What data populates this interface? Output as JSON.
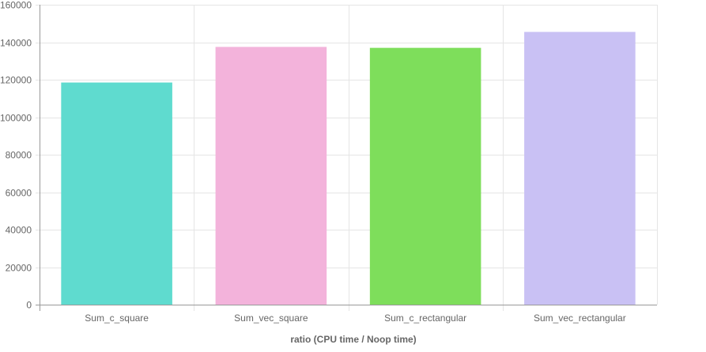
{
  "chart_data": {
    "type": "bar",
    "title": "",
    "xlabel": "ratio (CPU time / Noop time)",
    "ylabel": "",
    "categories": [
      "Sum_c_square",
      "Sum_vec_square",
      "Sum_c_rectangular",
      "Sum_vec_rectangular"
    ],
    "values": [
      118500,
      137500,
      137000,
      145500
    ],
    "colors": [
      "#5fdbcf",
      "#f3b3db",
      "#7ede5b",
      "#c9c1f4"
    ],
    "ylim": [
      0,
      160000
    ],
    "yticks": [
      0,
      20000,
      40000,
      60000,
      80000,
      100000,
      120000,
      140000,
      160000
    ],
    "ytick_labels": [
      "0",
      "20000",
      "40000",
      "60000",
      "80000",
      "100000",
      "120000",
      "140000",
      "160000"
    ],
    "grid": true,
    "legend": "none"
  }
}
